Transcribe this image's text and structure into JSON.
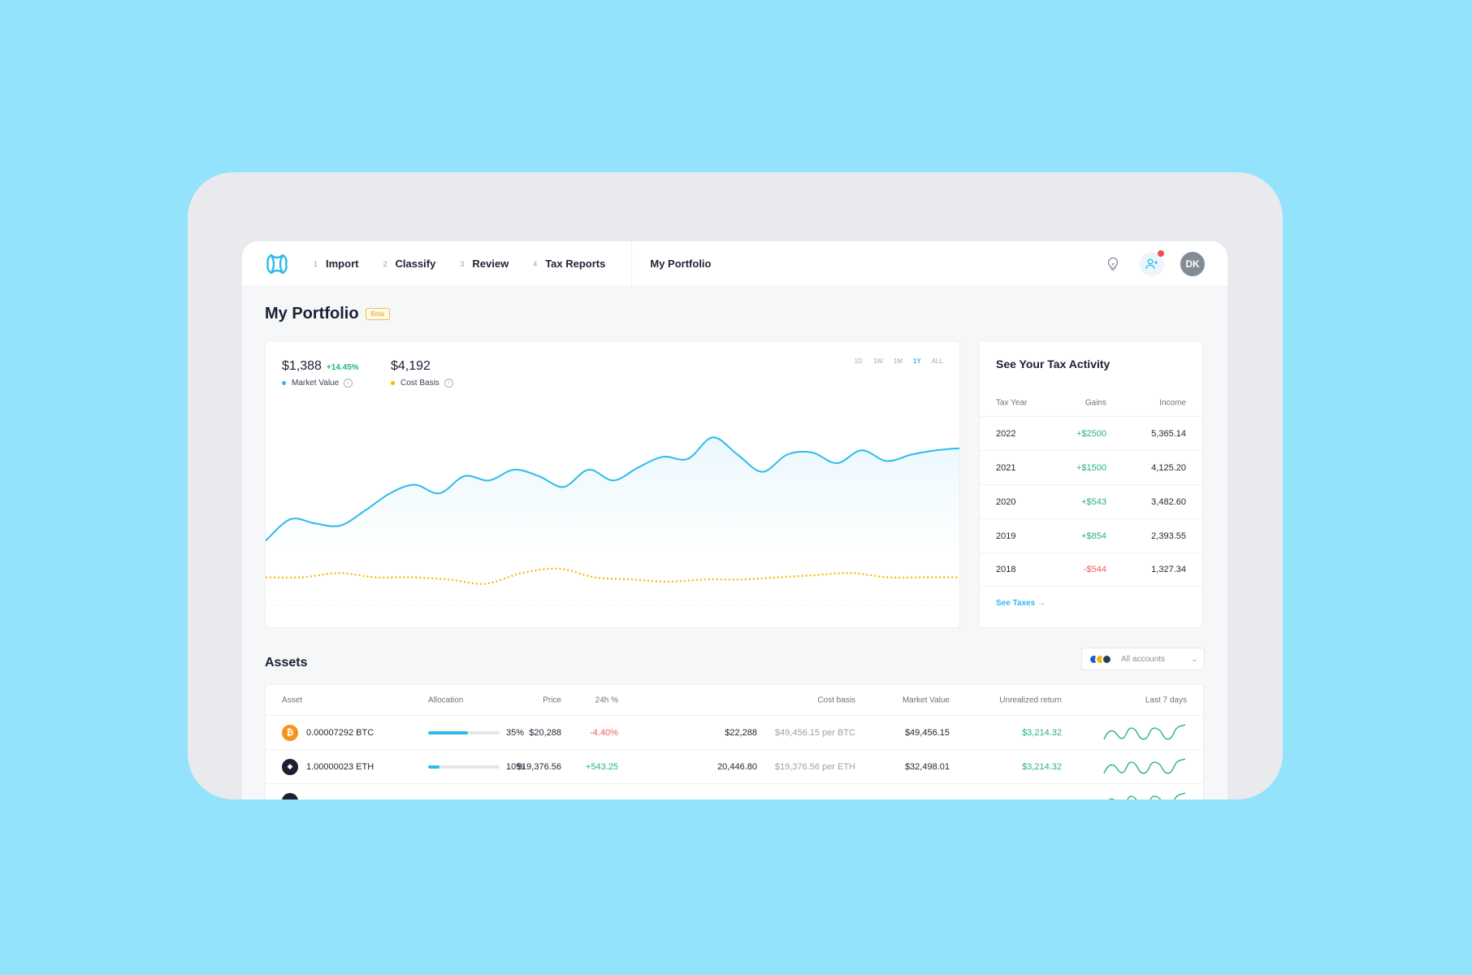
{
  "nav": {
    "steps": [
      {
        "num": "1",
        "label": "Import"
      },
      {
        "num": "2",
        "label": "Classify"
      },
      {
        "num": "3",
        "label": "Review"
      },
      {
        "num": "4",
        "label": "Tax Reports"
      }
    ],
    "portfolio_link": "My Portfolio",
    "avatar_initials": "DK",
    "icons": [
      "logo-icon",
      "lightbulb-icon",
      "invite-user-icon"
    ]
  },
  "page": {
    "title": "My Portfolio",
    "badge": "Beta"
  },
  "summary": {
    "market_value": "$1,388",
    "market_change": "+14.45%",
    "market_label": "Market Value",
    "cost_basis": "$4,192",
    "cost_label": "Cost Basis",
    "ranges": [
      "1D",
      "1W",
      "1M",
      "1Y",
      "ALL"
    ],
    "active_range": "1Y"
  },
  "chart_data": {
    "type": "line",
    "series": [
      {
        "name": "Market Value",
        "color": "#2ebbea",
        "values": [
          0.3,
          0.4,
          0.38,
          0.37,
          0.44,
          0.52,
          0.56,
          0.52,
          0.6,
          0.58,
          0.63,
          0.6,
          0.55,
          0.63,
          0.58,
          0.64,
          0.69,
          0.68,
          0.78,
          0.7,
          0.62,
          0.7,
          0.71,
          0.66,
          0.72,
          0.67,
          0.7,
          0.72,
          0.73
        ]
      },
      {
        "name": "Cost Basis",
        "color": "#f5b800",
        "values": [
          0.13,
          0.13,
          0.15,
          0.13,
          0.13,
          0.12,
          0.1,
          0.15,
          0.17,
          0.13,
          0.12,
          0.11,
          0.12,
          0.12,
          0.13,
          0.14,
          0.15,
          0.13,
          0.13,
          0.13
        ]
      }
    ],
    "ylim": [
      0,
      1
    ]
  },
  "tax": {
    "title": "See Your Tax Activity",
    "headers": [
      "Tax Year",
      "Gains",
      "Income"
    ],
    "rows": [
      {
        "year": "2022",
        "gain": "+$2500",
        "income": "5,365.14",
        "sign": "pos"
      },
      {
        "year": "2021",
        "gain": "+$1500",
        "income": "4,125.20",
        "sign": "pos"
      },
      {
        "year": "2020",
        "gain": "+$543",
        "income": "3,482.60",
        "sign": "pos"
      },
      {
        "year": "2019",
        "gain": "+$854",
        "income": "2,393.55",
        "sign": "pos"
      },
      {
        "year": "2018",
        "gain": "-$544",
        "income": "1,327.34",
        "sign": "neg"
      }
    ],
    "link": "See Taxes"
  },
  "assets": {
    "title": "Assets",
    "account_select": "All accounts",
    "coin_colors": [
      "#1f59d8",
      "#f5b800",
      "#2c3e50"
    ],
    "headers": [
      "Asset",
      "Allocation",
      "Price",
      "24h %",
      "Cost basis",
      "Market Value",
      "Unrealized return",
      "Last 7 days"
    ],
    "rows": [
      {
        "symbol": "₿",
        "coin_color": "#f7931a",
        "asset": "0.00007292 BTC",
        "allocation": 35,
        "allocation_text": "35%",
        "price": "$20,288",
        "change": "-4.40%",
        "change_sign": "neg",
        "cost": "$22,288",
        "cost_per": "$49,456.15 per BTC",
        "market": "$49,456.15",
        "unrealized": "$3,214.32"
      },
      {
        "symbol": "◆",
        "coin_color": "#1b1f2e",
        "asset": "1.00000023 ETH",
        "allocation": 10,
        "allocation_text": "10%",
        "price": "$19,376.56",
        "change": "+543.25",
        "change_sign": "pos",
        "cost": "20,446.80",
        "cost_per": "$19,376.56 per ETH",
        "market": "$32,498.01",
        "unrealized": "$3,214.32"
      }
    ]
  }
}
